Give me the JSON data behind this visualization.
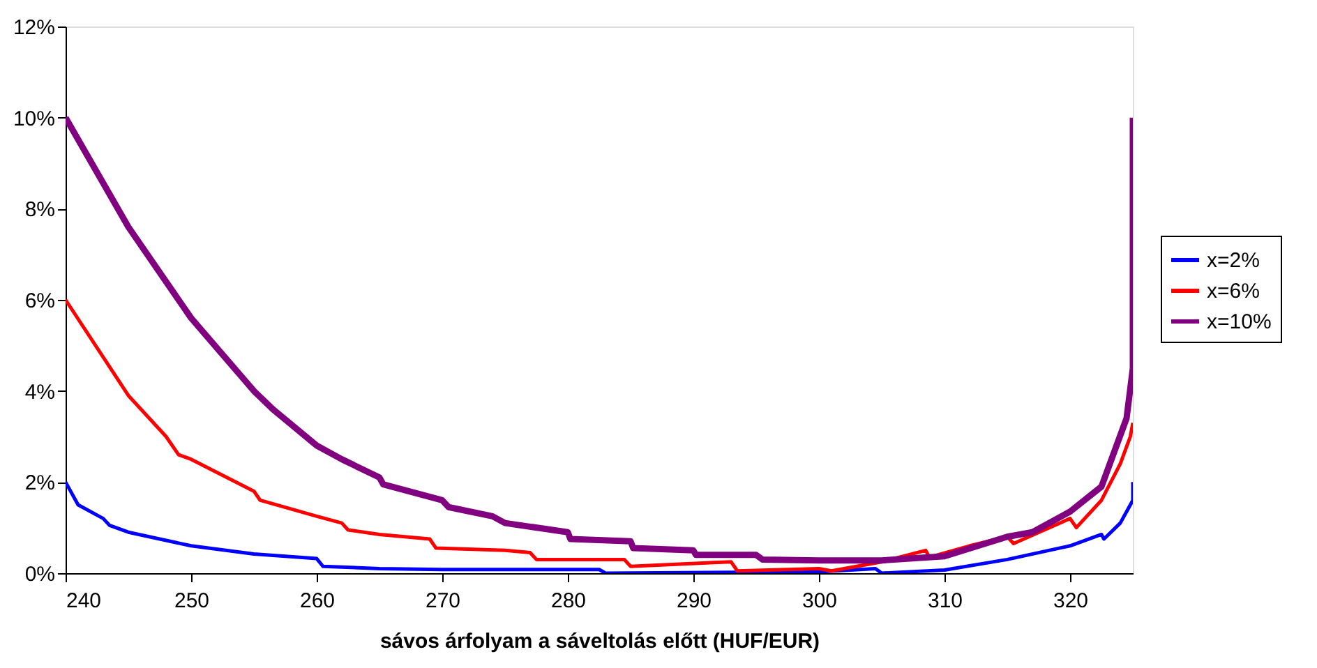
{
  "chart_data": {
    "type": "line",
    "xlabel": "sávos árfolyam a sáveltolás előtt   (HUF/EUR)",
    "xlim": [
      240,
      325
    ],
    "xticks": [
      240,
      250,
      260,
      270,
      280,
      290,
      300,
      310,
      320
    ],
    "ylim": [
      0,
      12
    ],
    "yticks": [
      {
        "value": 0,
        "label": "0%"
      },
      {
        "value": 2,
        "label": "2%"
      },
      {
        "value": 4,
        "label": "4%"
      },
      {
        "value": 6,
        "label": "6%"
      },
      {
        "value": 8,
        "label": "8%"
      },
      {
        "value": 10,
        "label": "10%"
      },
      {
        "value": 12,
        "label": "12%"
      }
    ],
    "grid": false,
    "legend": "right",
    "line_style": "solid",
    "marker": "none",
    "series": [
      {
        "name": "x=2%",
        "color": "#0000ff",
        "x": [
          240,
          241,
          243,
          243.5,
          245,
          250,
          255,
          260,
          260.5,
          265,
          270,
          282.5,
          283,
          300,
          304.5,
          305,
          310,
          315,
          320,
          322.5,
          322.7,
          324,
          324.8,
          325,
          325
        ],
        "values": [
          2.0,
          1.5,
          1.2,
          1.05,
          0.9,
          0.6,
          0.42,
          0.32,
          0.15,
          0.1,
          0.08,
          0.08,
          0,
          0.03,
          0.1,
          0,
          0.07,
          0.3,
          0.6,
          0.85,
          0.75,
          1.1,
          1.5,
          1.6,
          2.0
        ]
      },
      {
        "name": "x=6%",
        "color": "#ff0000",
        "x": [
          240,
          245,
          248,
          249,
          250,
          255,
          255.5,
          260,
          262,
          262.5,
          265,
          269,
          269.5,
          275,
          277,
          277.5,
          284.5,
          285,
          293,
          293.5,
          300,
          301,
          305,
          308.5,
          308.8,
          312,
          315,
          315.5,
          320,
          320.5,
          322.5,
          324,
          324.8,
          325
        ],
        "values": [
          6.0,
          3.9,
          3.0,
          2.6,
          2.5,
          1.8,
          1.6,
          1.25,
          1.1,
          0.95,
          0.85,
          0.75,
          0.55,
          0.5,
          0.45,
          0.3,
          0.3,
          0.15,
          0.25,
          0.05,
          0.1,
          0.05,
          0.25,
          0.5,
          0.35,
          0.6,
          0.8,
          0.65,
          1.2,
          1.0,
          1.6,
          2.4,
          3.0,
          3.3
        ]
      },
      {
        "name": "x=10%",
        "color": "#800080",
        "x": [
          240,
          245,
          250,
          255,
          256.5,
          260,
          262,
          265,
          265.3,
          270,
          270.5,
          274,
          275,
          280,
          280.2,
          285,
          285.2,
          290,
          290.2,
          295,
          295.5,
          300,
          305,
          310,
          315,
          317,
          320,
          322.5,
          324.5,
          325,
          325
        ],
        "values": [
          10.0,
          7.6,
          5.6,
          4.0,
          3.6,
          2.8,
          2.5,
          2.1,
          1.95,
          1.6,
          1.45,
          1.25,
          1.1,
          0.9,
          0.75,
          0.7,
          0.55,
          0.5,
          0.4,
          0.4,
          0.3,
          0.28,
          0.28,
          0.37,
          0.8,
          0.9,
          1.35,
          1.9,
          3.4,
          4.5,
          10.0
        ]
      }
    ]
  }
}
